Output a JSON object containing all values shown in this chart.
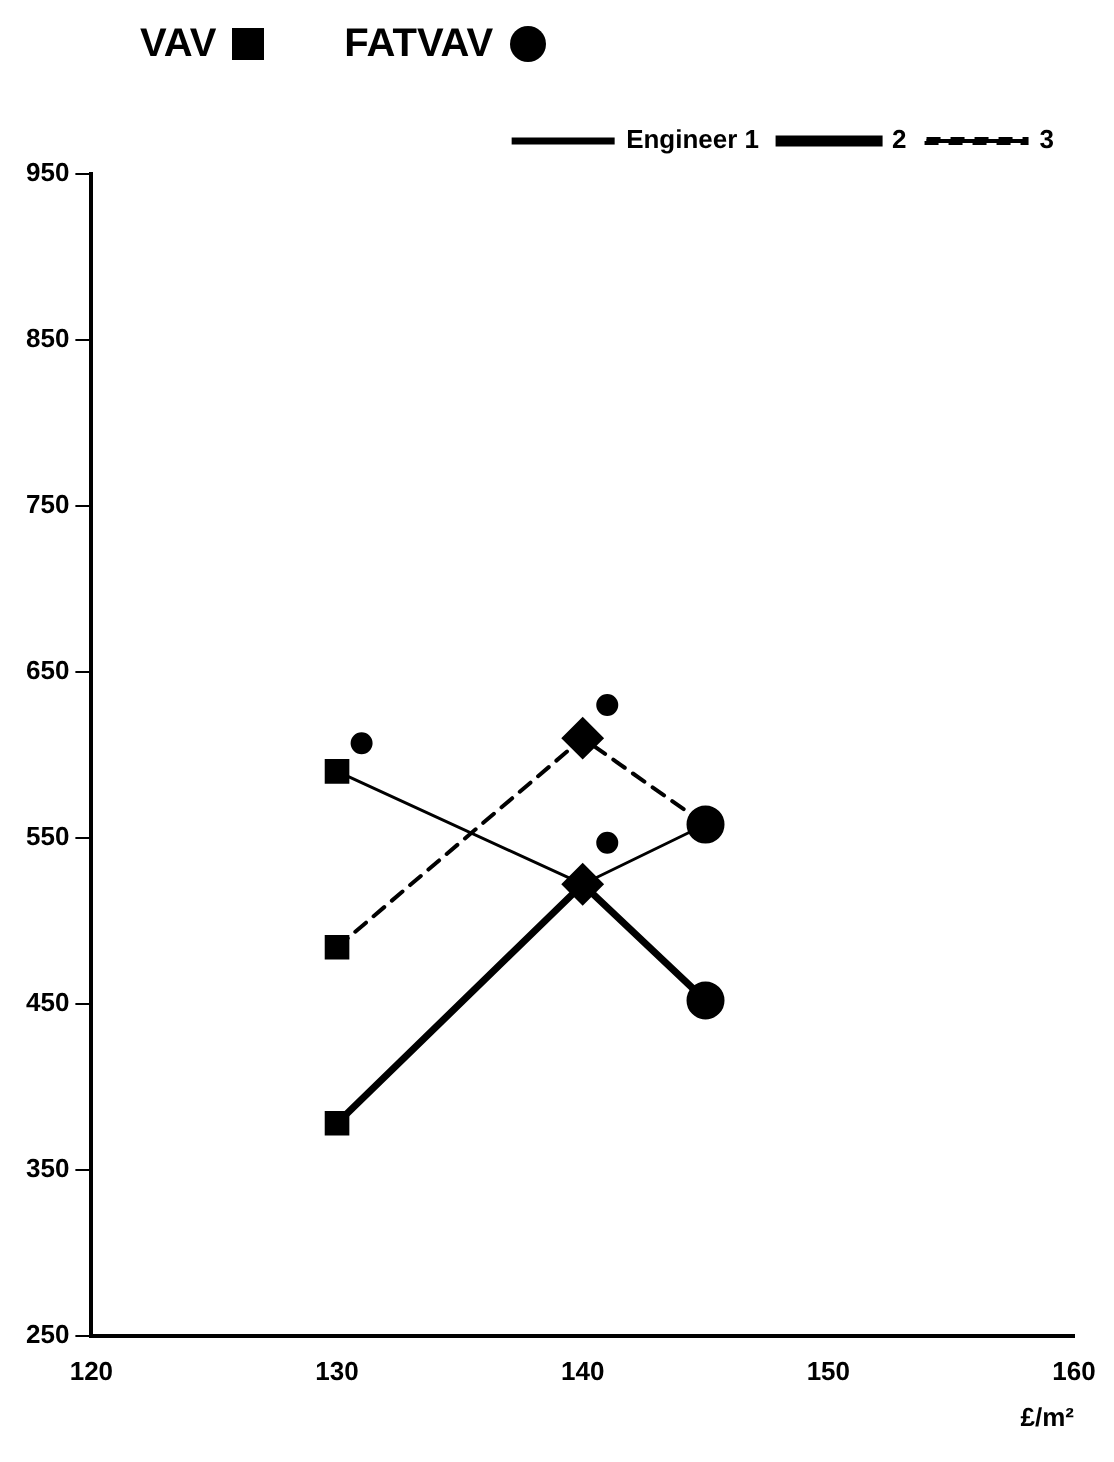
{
  "chart_data": {
    "type": "line",
    "xlabel": "£/m²",
    "annotations": [
      "VAV",
      "FATVAV"
    ],
    "xlim": [
      120,
      160
    ],
    "xticks": [
      120,
      130,
      140,
      150,
      160
    ],
    "ylim": [
      250,
      950
    ],
    "yticks": [
      250,
      350,
      450,
      550,
      650,
      750,
      850,
      950
    ],
    "grid": false,
    "legend": "top right",
    "marker": "none",
    "series": [
      {
        "name": "Engineer 1",
        "color": "#000000",
        "x": [
          130,
          140,
          145
        ],
        "values": [
          590,
          522,
          558
        ],
        "line_style": "solid"
      },
      {
        "name": "2",
        "color": "#000000",
        "x": [
          130,
          140,
          145
        ],
        "values": [
          378,
          522,
          452
        ],
        "line_style": "solid"
      },
      {
        "name": "3",
        "color": "#000000",
        "x": [
          130,
          140,
          145
        ],
        "values": [
          484,
          610,
          558
        ],
        "line_style": "dashed"
      },
      {
        "type": "scatter",
        "color": "#000000",
        "marker": "square",
        "x": [
          130,
          130,
          130
        ],
        "values": [
          590,
          484,
          378
        ]
      },
      {
        "type": "scatter",
        "color": "#000000",
        "marker": "diamond",
        "x": [
          140,
          140
        ],
        "values": [
          610,
          522
        ]
      },
      {
        "type": "scatter",
        "color": "#000000",
        "marker": "circle",
        "x": [
          145,
          145
        ],
        "values": [
          558,
          452
        ]
      },
      {
        "type": "scatter",
        "color": "#000000",
        "marker": "circle",
        "x": [
          131,
          141,
          141
        ],
        "values": [
          607,
          630,
          547
        ]
      }
    ]
  }
}
